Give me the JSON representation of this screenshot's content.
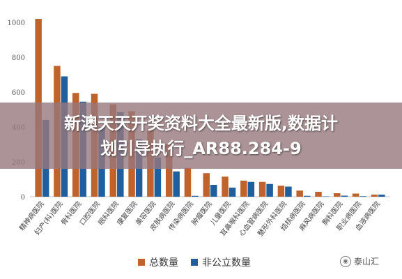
{
  "chart_data": {
    "type": "bar",
    "categories": [
      "精神病医院",
      "妇产(科)医院",
      "骨科医院",
      "口腔医院",
      "眼科医院",
      "康复医院",
      "美容医院",
      "皮肤病医院",
      "传染病医院",
      "肿瘤医院",
      "儿童医院",
      "耳鼻喉科医院",
      "心血管病医院",
      "整形外科医院",
      "结核病医院",
      "麻风病医院",
      "胸科医院",
      "职业病医院",
      "血液病医院"
    ],
    "series": [
      {
        "name": "总数量",
        "color": "#c0622b",
        "values": [
          1020,
          750,
          595,
          590,
          530,
          490,
          390,
          300,
          165,
          135,
          115,
          92,
          85,
          63,
          35,
          28,
          20,
          18,
          12
        ]
      },
      {
        "name": "非公立数量",
        "color": "#1f5f9e",
        "values": [
          440,
          690,
          545,
          400,
          485,
          330,
          225,
          145,
          5,
          68,
          52,
          85,
          73,
          58,
          5,
          2,
          6,
          3,
          12
        ]
      }
    ],
    "yticks": [
      0,
      200,
      400,
      600,
      800,
      1000
    ],
    "ylim": [
      0,
      1000
    ],
    "grid": false,
    "legend_position": "bottom"
  },
  "overlay": {
    "line1": "新澳天天开奖资料大全最新版,数据计",
    "line2": "划引导执行_AR88.284-9"
  },
  "watermark": {
    "text": "泰山汇"
  }
}
